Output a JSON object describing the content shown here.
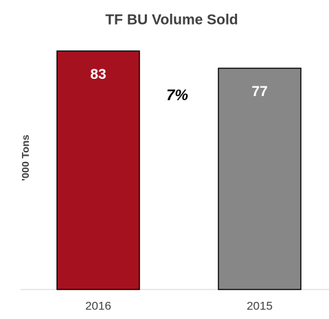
{
  "chart_data": {
    "type": "bar",
    "title": "TF BU Volume Sold",
    "y_label": "'000 Tons",
    "categories": [
      "2016",
      "2015"
    ],
    "values": [
      83,
      77
    ],
    "colors": [
      "#a6111f",
      "#878787"
    ],
    "ylim": [
      0,
      90
    ],
    "annotations": [
      "7%"
    ]
  }
}
